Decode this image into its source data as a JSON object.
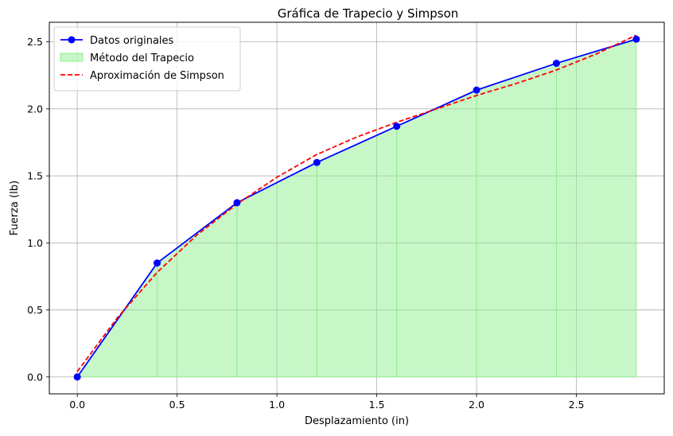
{
  "chart_data": {
    "type": "line",
    "title": "Gráfica de Trapecio y Simpson",
    "xlabel": "Desplazamiento (in)",
    "ylabel": "Fuerza (lb)",
    "xlim": [
      -0.14,
      2.94
    ],
    "ylim": [
      -0.126,
      2.646
    ],
    "xticks": [
      0.0,
      0.5,
      1.0,
      1.5,
      2.0,
      2.5
    ],
    "xtick_labels": [
      "0.0",
      "0.5",
      "1.0",
      "1.5",
      "2.0",
      "2.5"
    ],
    "yticks": [
      0.0,
      0.5,
      1.0,
      1.5,
      2.0,
      2.5
    ],
    "ytick_labels": [
      "0.0",
      "0.5",
      "1.0",
      "1.5",
      "2.0",
      "2.5"
    ],
    "grid": true,
    "legend_position": "top-left",
    "x": [
      0.0,
      0.4,
      0.8,
      1.2,
      1.6,
      2.0,
      2.4,
      2.8
    ],
    "series": [
      {
        "name": "Datos originales",
        "kind": "line-markers",
        "color": "#0000ff",
        "values": [
          0.0,
          0.85,
          1.3,
          1.6,
          1.87,
          2.14,
          2.34,
          2.52
        ]
      },
      {
        "name": "Método del Trapecio",
        "kind": "fill",
        "color": "#90ee90",
        "values": [
          0.0,
          0.85,
          1.3,
          1.6,
          1.87,
          2.14,
          2.34,
          2.52
        ]
      },
      {
        "name": "Aproximación de Simpson",
        "kind": "dashed-line",
        "color": "#ff0000",
        "x": [
          0.0,
          0.2,
          0.4,
          0.6,
          0.8,
          1.0,
          1.2,
          1.4,
          1.6,
          1.8,
          2.0,
          2.2,
          2.4,
          2.6,
          2.8
        ],
        "values": [
          0.04,
          0.44,
          0.78,
          1.06,
          1.29,
          1.49,
          1.66,
          1.79,
          1.9,
          2.0,
          2.1,
          2.19,
          2.29,
          2.41,
          2.55
        ]
      }
    ]
  }
}
